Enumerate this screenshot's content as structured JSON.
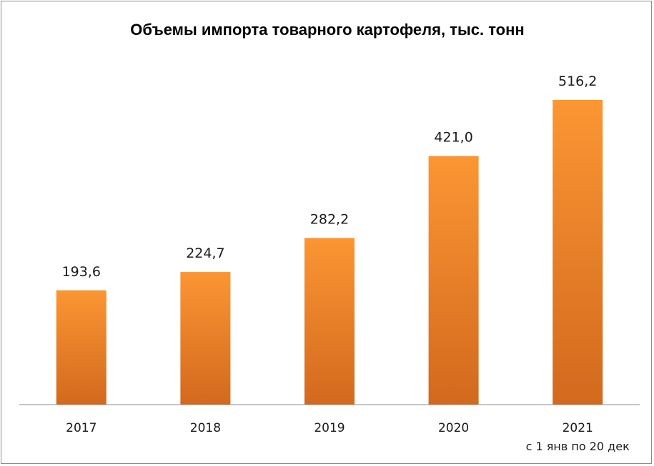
{
  "chart_data": {
    "type": "bar",
    "title": "Объемы импорта товарного картофеля, тыс. тонн",
    "categories": [
      "2017",
      "2018",
      "2019",
      "2020",
      "2021"
    ],
    "values": [
      193.6,
      224.7,
      282.2,
      421.0,
      516.2
    ],
    "data_labels": [
      "193,6",
      "224,7",
      "282,2",
      "421,0",
      "516,2"
    ],
    "category_notes": [
      "",
      "",
      "",
      "",
      "с 1 янв по 20 дек"
    ],
    "xlabel": "",
    "ylabel": "",
    "ylim": [
      0,
      550
    ],
    "grid": false,
    "legend": "none",
    "colors": {
      "bar_top": "#fb9633",
      "bar_bottom": "#d2691e",
      "axis": "#8c8c8c"
    }
  }
}
